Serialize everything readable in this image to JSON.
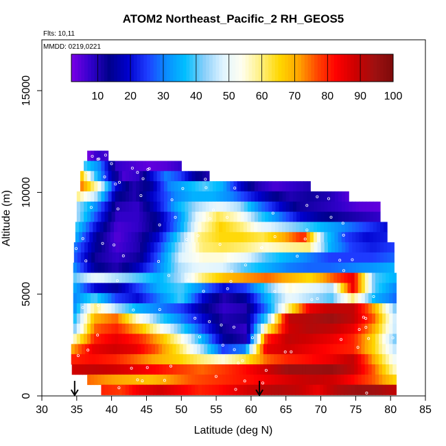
{
  "chart_data": {
    "type": "heatmap",
    "title": "ATOM2 Northeast_Pacific_2 RH_GEOS5",
    "subtitle_flights": "Flts: 10,11",
    "subtitle_dates": "MMDD: 0219,0221",
    "xlabel": "Latitude (deg N)",
    "ylabel": "Altitude (m)",
    "xlim": [
      30,
      85
    ],
    "ylim": [
      0,
      17500
    ],
    "xticks": [
      "30",
      "35",
      "40",
      "45",
      "50",
      "55",
      "60",
      "65",
      "70",
      "75",
      "80",
      "85"
    ],
    "yticks": [
      "0",
      "5000",
      "10000",
      "15000"
    ],
    "colorbar": {
      "range": [
        2,
        100
      ],
      "ticks": [
        "10",
        "20",
        "30",
        "40",
        "50",
        "60",
        "70",
        "80",
        "90",
        "100"
      ],
      "colors": [
        "#7a00e6",
        "#3300cc",
        "#00008b",
        "#0000cd",
        "#1e3cff",
        "#0a8cff",
        "#00bfff",
        "#87cefa",
        "#e0f4ff",
        "#fffff0",
        "#fff080",
        "#ffd700",
        "#ffa500",
        "#ff4500",
        "#ff0000",
        "#cd0000",
        "#a01010",
        "#7d0a0a"
      ]
    },
    "arrows_at_latitude": [
      34.7,
      61.2
    ],
    "heatmap_rows": [
      {
        "alt": 11800,
        "lat": [
          36.5,
          39.5
        ],
        "rh": [
          2,
          8,
          6
        ]
      },
      {
        "alt": 11300,
        "lat": [
          36,
          50
        ],
        "rh": [
          40,
          30,
          8,
          6,
          4,
          5,
          8
        ]
      },
      {
        "alt": 10800,
        "lat": [
          35.5,
          54
        ],
        "rh": [
          70,
          40,
          20,
          6,
          8,
          20,
          30,
          25,
          15,
          10
        ]
      },
      {
        "alt": 10300,
        "lat": [
          35.5,
          68.5
        ],
        "rh": [
          75,
          55,
          20,
          10,
          15,
          30,
          35,
          40,
          35,
          20,
          10,
          6,
          8,
          10
        ]
      },
      {
        "alt": 9800,
        "lat": [
          35,
          74
        ],
        "rh": [
          60,
          45,
          15,
          10,
          20,
          30,
          35,
          35,
          30,
          22,
          15,
          10,
          12,
          10,
          5
        ]
      },
      {
        "alt": 9300,
        "lat": [
          35,
          78.5
        ],
        "rh": [
          45,
          30,
          10,
          8,
          20,
          35,
          45,
          50,
          45,
          30,
          20,
          12,
          10,
          8,
          5,
          4
        ]
      },
      {
        "alt": 8800,
        "lat": [
          35,
          78.5
        ],
        "rh": [
          45,
          25,
          8,
          8,
          15,
          30,
          50,
          62,
          55,
          40,
          30,
          20,
          15,
          12,
          10,
          8
        ]
      },
      {
        "alt": 8300,
        "lat": [
          34.8,
          79.5
        ],
        "rh": [
          40,
          20,
          6,
          8,
          15,
          32,
          55,
          66,
          60,
          50,
          45,
          40,
          35,
          30,
          25,
          20
        ]
      },
      {
        "alt": 7800,
        "lat": [
          34.8,
          79.5
        ],
        "rh": [
          35,
          15,
          5,
          10,
          20,
          40,
          60,
          65,
          65,
          62,
          70,
          80,
          40,
          25,
          20,
          22
        ]
      },
      {
        "alt": 7300,
        "lat": [
          34.6,
          80.5
        ],
        "rh": [
          30,
          15,
          6,
          10,
          25,
          45,
          60,
          62,
          60,
          55,
          58,
          60,
          35,
          25,
          22,
          25
        ]
      },
      {
        "alt": 6800,
        "lat": [
          34.6,
          80.5
        ],
        "rh": [
          28,
          12,
          8,
          12,
          28,
          48,
          55,
          55,
          50,
          40,
          35,
          30,
          25,
          25,
          25,
          28
        ]
      },
      {
        "alt": 6300,
        "lat": [
          34.5,
          80.5
        ],
        "rh": [
          32,
          15,
          10,
          18,
          30,
          45,
          50,
          48,
          40,
          35,
          30,
          28,
          28,
          30,
          32,
          35
        ]
      },
      {
        "alt": 5800,
        "lat": [
          34.5,
          80.8
        ],
        "rh": [
          40,
          50,
          45,
          40,
          35,
          45,
          60,
          68,
          72,
          75,
          70,
          65,
          75,
          85,
          40,
          35
        ]
      },
      {
        "alt": 5300,
        "lat": [
          34.5,
          80.8
        ],
        "rh": [
          35,
          20,
          15,
          25,
          35,
          40,
          30,
          20,
          25,
          40,
          55,
          50,
          45,
          85,
          40,
          30
        ]
      },
      {
        "alt": 4800,
        "lat": [
          34.5,
          80.8
        ],
        "rh": [
          30,
          40,
          25,
          20,
          30,
          40,
          20,
          10,
          15,
          35,
          50,
          45,
          40,
          60,
          35,
          28
        ]
      },
      {
        "alt": 4300,
        "lat": [
          34.5,
          80.8
        ],
        "rh": [
          30,
          60,
          45,
          35,
          30,
          25,
          15,
          8,
          10,
          30,
          60,
          85,
          90,
          90,
          70,
          40
        ]
      },
      {
        "alt": 3800,
        "lat": [
          34.5,
          80.8
        ],
        "rh": [
          35,
          70,
          75,
          55,
          40,
          30,
          20,
          10,
          12,
          40,
          90,
          92,
          95,
          90,
          75,
          45
        ]
      },
      {
        "alt": 3300,
        "lat": [
          34.5,
          80.8
        ],
        "rh": [
          40,
          75,
          80,
          70,
          55,
          40,
          25,
          12,
          8,
          60,
          88,
          92,
          90,
          85,
          70,
          45
        ]
      },
      {
        "alt": 2800,
        "lat": [
          34.5,
          80.8
        ],
        "rh": [
          55,
          80,
          85,
          80,
          70,
          55,
          35,
          15,
          10,
          80,
          90,
          88,
          85,
          80,
          65,
          40
        ]
      },
      {
        "alt": 2300,
        "lat": [
          34.2,
          80.8
        ],
        "rh": [
          70,
          85,
          88,
          85,
          75,
          62,
          45,
          25,
          30,
          85,
          88,
          85,
          82,
          80,
          65,
          45
        ]
      },
      {
        "alt": 1800,
        "lat": [
          34.2,
          80.8
        ],
        "rh": [
          80,
          82,
          80,
          75,
          70,
          66,
          60,
          55,
          62,
          75,
          80,
          82,
          85,
          90,
          70,
          50
        ]
      },
      {
        "alt": 1300,
        "lat": [
          34.3,
          80.8
        ],
        "rh": [
          88,
          90,
          88,
          85,
          82,
          78,
          75,
          78,
          82,
          88,
          95,
          95,
          96,
          90,
          75,
          55
        ]
      },
      {
        "alt": 800,
        "lat": [
          36.5,
          80.8
        ],
        "rh": [
          75,
          72,
          70,
          68,
          72,
          76,
          78,
          80,
          82,
          85,
          88,
          90,
          88,
          82,
          75,
          65
        ]
      },
      {
        "alt": 300,
        "lat": [
          38.5,
          80.8
        ],
        "rh": [
          80,
          78,
          85,
          88,
          84,
          80,
          82,
          86,
          90,
          92,
          90,
          85,
          92,
          95,
          94,
          90
        ]
      }
    ]
  }
}
